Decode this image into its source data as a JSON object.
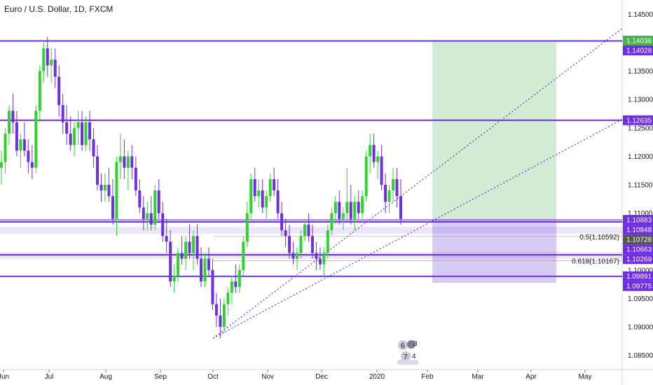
{
  "header": {
    "title": "Euro / U.S. Dollar, 1D, FXCM"
  },
  "chart_data": {
    "type": "candlestick",
    "symbol": "Euro / U.S. Dollar, 1D, FXCM",
    "y_axis": {
      "ticks": [
        1.145,
        1.14,
        1.135,
        1.13,
        1.125,
        1.12,
        1.115,
        1.11,
        1.105,
        1.1,
        1.095,
        1.09,
        1.085
      ],
      "tick_labels": [
        "1.14500",
        "1.14000",
        "1.13500",
        "1.13000",
        "1.12500",
        "1.12000",
        "1.11500",
        "1.11000",
        "1.10500",
        "1.10000",
        "1.09500",
        "1.09000",
        "1.08500"
      ],
      "range": [
        1.0825,
        1.1475
      ]
    },
    "x_axis": {
      "labels": [
        "Jun",
        "Jul",
        "Aug",
        "Sep",
        "Oct",
        "Nov",
        "Dec",
        "2020",
        "Feb",
        "Mar",
        "Apr",
        "May"
      ]
    },
    "price_tags": [
      {
        "value": "1.14036",
        "color": "#4caf50"
      },
      {
        "value": "1.14028",
        "color": "#6e2fe0"
      },
      {
        "value": "1.12635",
        "color": "#6e2fe0"
      },
      {
        "value": "1.10883",
        "color": "#6e2fe0"
      },
      {
        "value": "1.10848",
        "color": "#6e2fe0"
      },
      {
        "value": "1.10728",
        "color": "#555555"
      },
      {
        "value": "1.10663",
        "color": "#6e2fe0"
      },
      {
        "value": "1.10269",
        "color": "#6e2fe0"
      },
      {
        "value": "1.09891",
        "color": "#6e2fe0"
      },
      {
        "value": "1.09775",
        "color": "#6e2fe0"
      }
    ],
    "horizontal_levels": [
      1.1403,
      1.12635,
      1.10848,
      1.10269,
      1.09891
    ],
    "fib_labels": [
      {
        "text": "0.5(1.10592)",
        "price": 1.10592
      },
      {
        "text": "0.618(1.10167)",
        "price": 1.10167
      }
    ],
    "position": {
      "entry": 1.10883,
      "target": 1.14036,
      "stop": 1.09775
    },
    "trendlines": [
      {
        "from": [
          "Oct",
          1.088
        ],
        "to": [
          "May",
          1.1425
        ]
      },
      {
        "from": [
          "Oct",
          1.088
        ],
        "to": [
          "May",
          1.1265
        ]
      }
    ],
    "candles": [
      [
        1.118,
        1.121,
        1.115,
        1.119
      ],
      [
        1.119,
        1.125,
        1.117,
        1.124
      ],
      [
        1.124,
        1.129,
        1.122,
        1.128
      ],
      [
        1.128,
        1.131,
        1.124,
        1.126
      ],
      [
        1.126,
        1.128,
        1.12,
        1.121
      ],
      [
        1.121,
        1.124,
        1.118,
        1.123
      ],
      [
        1.123,
        1.126,
        1.12,
        1.121
      ],
      [
        1.121,
        1.123,
        1.117,
        1.119
      ],
      [
        1.119,
        1.122,
        1.116,
        1.118
      ],
      [
        1.118,
        1.129,
        1.117,
        1.128
      ],
      [
        1.128,
        1.136,
        1.126,
        1.135
      ],
      [
        1.135,
        1.14,
        1.133,
        1.139
      ],
      [
        1.139,
        1.141,
        1.134,
        1.136
      ],
      [
        1.136,
        1.139,
        1.133,
        1.137
      ],
      [
        1.137,
        1.139,
        1.132,
        1.134
      ],
      [
        1.134,
        1.136,
        1.127,
        1.129
      ],
      [
        1.129,
        1.131,
        1.124,
        1.126
      ],
      [
        1.126,
        1.129,
        1.122,
        1.124
      ],
      [
        1.124,
        1.127,
        1.121,
        1.122
      ],
      [
        1.122,
        1.126,
        1.12,
        1.125
      ],
      [
        1.125,
        1.128,
        1.122,
        1.126
      ],
      [
        1.126,
        1.128,
        1.121,
        1.122
      ],
      [
        1.122,
        1.127,
        1.121,
        1.126
      ],
      [
        1.126,
        1.128,
        1.121,
        1.123
      ],
      [
        1.123,
        1.125,
        1.118,
        1.12
      ],
      [
        1.12,
        1.122,
        1.114,
        1.115
      ],
      [
        1.115,
        1.117,
        1.112,
        1.114
      ],
      [
        1.114,
        1.117,
        1.112,
        1.115
      ],
      [
        1.115,
        1.118,
        1.112,
        1.113
      ],
      [
        1.113,
        1.116,
        1.108,
        1.109
      ],
      [
        1.109,
        1.12,
        1.106,
        1.119
      ],
      [
        1.119,
        1.124,
        1.116,
        1.12
      ],
      [
        1.12,
        1.123,
        1.116,
        1.118
      ],
      [
        1.118,
        1.121,
        1.114,
        1.12
      ],
      [
        1.12,
        1.122,
        1.116,
        1.118
      ],
      [
        1.118,
        1.12,
        1.113,
        1.114
      ],
      [
        1.114,
        1.116,
        1.11,
        1.111
      ],
      [
        1.111,
        1.113,
        1.107,
        1.109
      ],
      [
        1.109,
        1.112,
        1.107,
        1.11
      ],
      [
        1.11,
        1.113,
        1.107,
        1.108
      ],
      [
        1.108,
        1.115,
        1.107,
        1.114
      ],
      [
        1.114,
        1.116,
        1.109,
        1.11
      ],
      [
        1.11,
        1.112,
        1.105,
        1.106
      ],
      [
        1.106,
        1.109,
        1.103,
        1.105
      ],
      [
        1.105,
        1.107,
        1.097,
        1.098
      ],
      [
        1.098,
        1.101,
        1.096,
        1.099
      ],
      [
        1.099,
        1.104,
        1.098,
        1.103
      ],
      [
        1.103,
        1.106,
        1.101,
        1.102
      ],
      [
        1.102,
        1.106,
        1.1,
        1.105
      ],
      [
        1.105,
        1.108,
        1.102,
        1.103
      ],
      [
        1.103,
        1.107,
        1.1,
        1.106
      ],
      [
        1.106,
        1.108,
        1.101,
        1.102
      ],
      [
        1.102,
        1.104,
        1.097,
        1.098
      ],
      [
        1.098,
        1.103,
        1.097,
        1.102
      ],
      [
        1.102,
        1.104,
        1.099,
        1.1
      ],
      [
        1.1,
        1.102,
        1.093,
        1.094
      ],
      [
        1.094,
        1.096,
        1.09,
        1.092
      ],
      [
        1.092,
        1.095,
        1.088,
        1.09
      ],
      [
        1.09,
        1.095,
        1.089,
        1.094
      ],
      [
        1.094,
        1.097,
        1.092,
        1.096
      ],
      [
        1.096,
        1.099,
        1.094,
        1.098
      ],
      [
        1.098,
        1.101,
        1.096,
        1.097
      ],
      [
        1.097,
        1.101,
        1.096,
        1.1
      ],
      [
        1.1,
        1.106,
        1.099,
        1.105
      ],
      [
        1.105,
        1.112,
        1.104,
        1.11
      ],
      [
        1.11,
        1.117,
        1.109,
        1.116
      ],
      [
        1.116,
        1.118,
        1.112,
        1.113
      ],
      [
        1.113,
        1.116,
        1.111,
        1.114
      ],
      [
        1.114,
        1.116,
        1.11,
        1.111
      ],
      [
        1.111,
        1.114,
        1.109,
        1.113
      ],
      [
        1.113,
        1.117,
        1.112,
        1.116
      ],
      [
        1.116,
        1.118,
        1.113,
        1.114
      ],
      [
        1.114,
        1.116,
        1.109,
        1.11
      ],
      [
        1.11,
        1.112,
        1.106,
        1.107
      ],
      [
        1.107,
        1.109,
        1.104,
        1.106
      ],
      [
        1.106,
        1.108,
        1.102,
        1.103
      ],
      [
        1.103,
        1.105,
        1.101,
        1.102
      ],
      [
        1.102,
        1.104,
        1.1,
        1.103
      ],
      [
        1.103,
        1.107,
        1.102,
        1.106
      ],
      [
        1.106,
        1.109,
        1.105,
        1.108
      ],
      [
        1.108,
        1.11,
        1.105,
        1.106
      ],
      [
        1.106,
        1.108,
        1.102,
        1.103
      ],
      [
        1.103,
        1.105,
        1.1,
        1.102
      ],
      [
        1.102,
        1.104,
        1.1,
        1.101
      ],
      [
        1.101,
        1.104,
        1.099,
        1.103
      ],
      [
        1.103,
        1.108,
        1.102,
        1.107
      ],
      [
        1.107,
        1.111,
        1.106,
        1.11
      ],
      [
        1.11,
        1.113,
        1.108,
        1.112
      ],
      [
        1.112,
        1.114,
        1.108,
        1.109
      ],
      [
        1.109,
        1.111,
        1.107,
        1.11
      ],
      [
        1.11,
        1.118,
        1.109,
        1.112
      ],
      [
        1.112,
        1.115,
        1.108,
        1.109
      ],
      [
        1.109,
        1.113,
        1.107,
        1.112
      ],
      [
        1.112,
        1.114,
        1.109,
        1.11
      ],
      [
        1.11,
        1.114,
        1.109,
        1.113
      ],
      [
        1.113,
        1.121,
        1.112,
        1.12
      ],
      [
        1.12,
        1.124,
        1.117,
        1.122
      ],
      [
        1.122,
        1.124,
        1.118,
        1.119
      ],
      [
        1.119,
        1.121,
        1.116,
        1.12
      ],
      [
        1.12,
        1.122,
        1.114,
        1.115
      ],
      [
        1.115,
        1.117,
        1.11,
        1.112
      ],
      [
        1.112,
        1.115,
        1.11,
        1.114
      ],
      [
        1.114,
        1.118,
        1.112,
        1.116
      ],
      [
        1.116,
        1.118,
        1.111,
        1.113
      ],
      [
        1.113,
        1.116,
        1.108,
        1.109
      ]
    ]
  },
  "bottom_badges": {
    "row1_left": "6",
    "row1_right": "3",
    "row2_left": "7",
    "row2_right": "4"
  }
}
